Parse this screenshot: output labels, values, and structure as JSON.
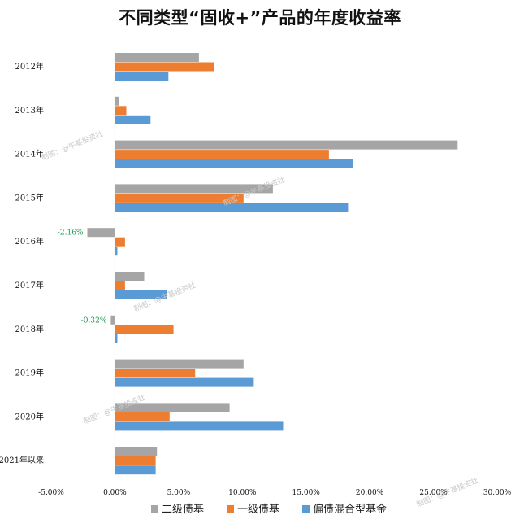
{
  "chart_data": {
    "type": "bar",
    "orientation": "horizontal",
    "title": "不同类型“固收+”产品的年度收益率",
    "categories": [
      "2012年",
      "2013年",
      "2014年",
      "2015年",
      "2016年",
      "2017年",
      "2018年",
      "2019年",
      "2020年",
      "2021年以来"
    ],
    "series": [
      {
        "name": "二级债基",
        "color": "#a5a5a5",
        "values": [
          6.6,
          0.3,
          26.9,
          12.4,
          -2.16,
          2.3,
          -0.32,
          10.1,
          9.0,
          3.3
        ]
      },
      {
        "name": "一级债基",
        "color": "#ed7d31",
        "values": [
          7.8,
          0.9,
          16.8,
          10.1,
          0.8,
          0.8,
          4.6,
          6.3,
          4.3,
          3.2
        ]
      },
      {
        "name": "偏债混合型基金",
        "color": "#5b9bd5",
        "values": [
          4.2,
          2.8,
          18.7,
          18.3,
          0.2,
          4.1,
          0.2,
          10.9,
          13.2,
          3.2
        ]
      }
    ],
    "data_labels": [
      {
        "category": "2016年",
        "series": "二级债基",
        "text": "-2.16%"
      },
      {
        "category": "2018年",
        "series": "二级债基",
        "text": "-0.32%"
      }
    ],
    "x_ticks": [
      "-5.00%",
      "0.00%",
      "5.00%",
      "10.00%",
      "15.00%",
      "20.00%",
      "25.00%",
      "30.00%"
    ],
    "xlim": [
      -5,
      30
    ],
    "grid": false,
    "legend_position": "bottom",
    "label_color": "#1a9850"
  },
  "watermark_text": "制图：@牛基投资社"
}
